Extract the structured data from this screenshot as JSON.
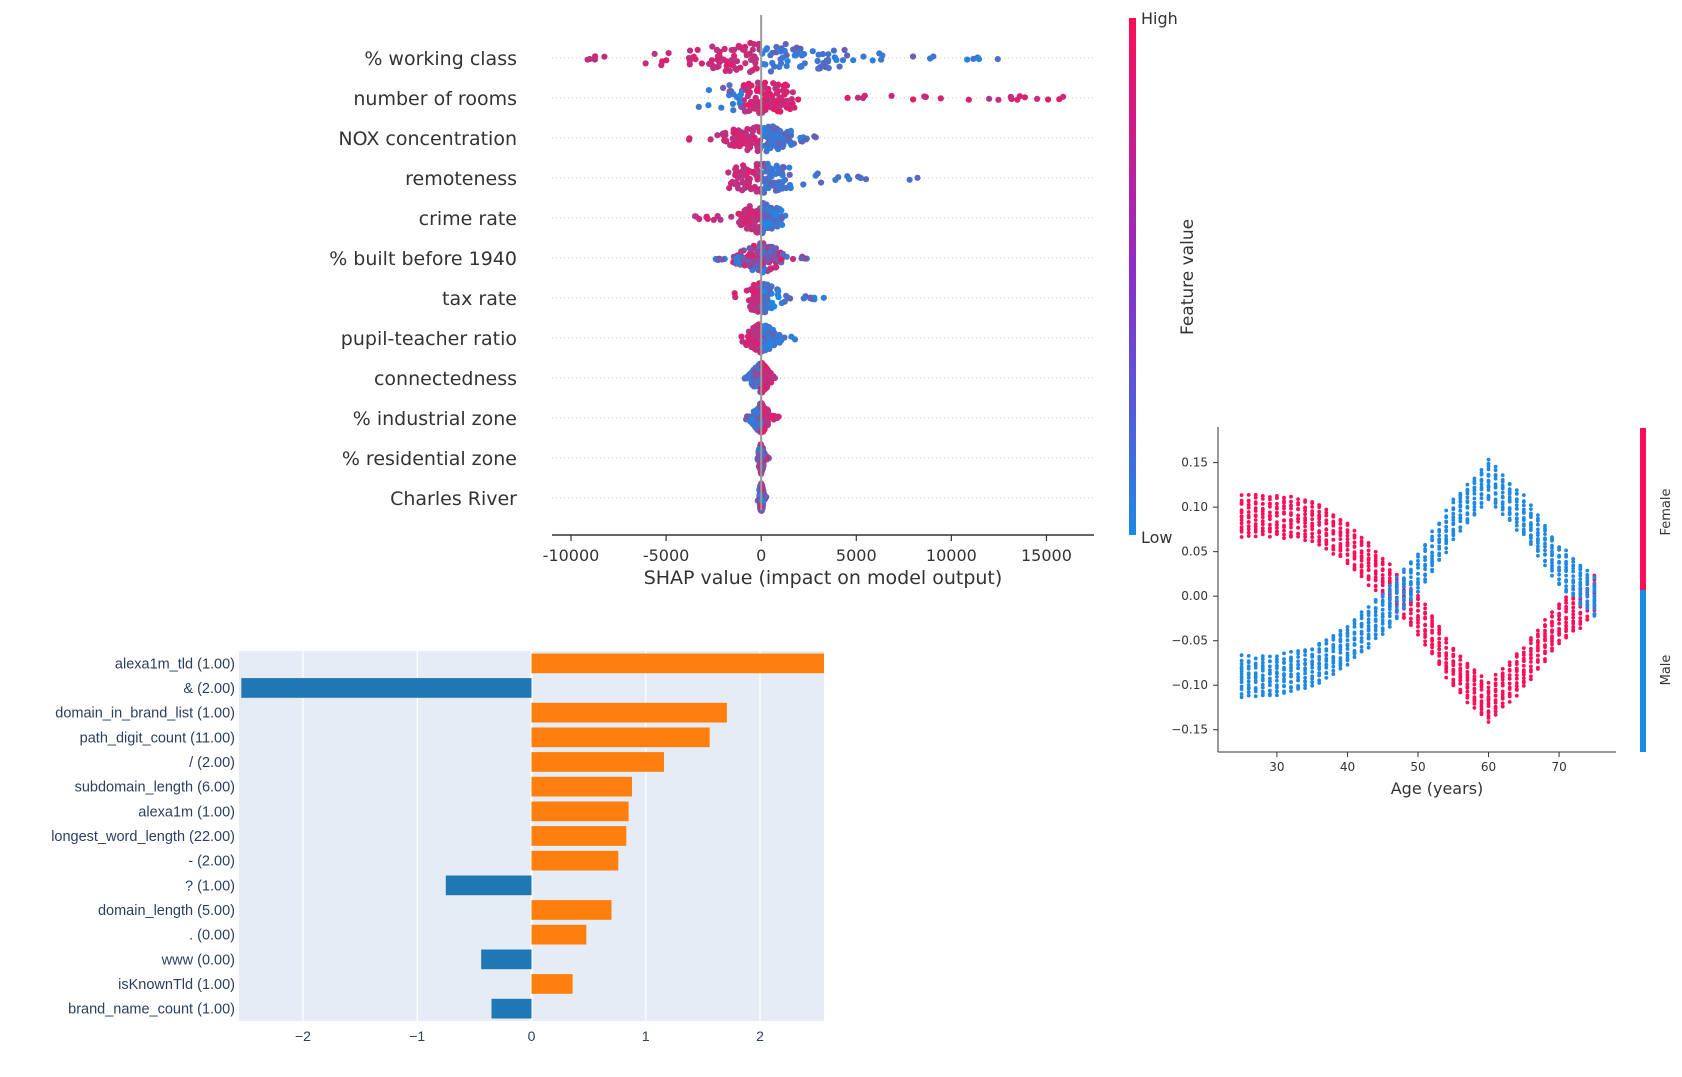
{
  "summary": {
    "type": "scatter",
    "subtype": "beeswarm",
    "xlabel": "SHAP value (impact on model output)",
    "xlim": [
      -11000,
      17500
    ],
    "xticks": [
      -10000,
      -5000,
      0,
      5000,
      10000,
      15000
    ],
    "xtick_labels": [
      "-10000",
      "-5000",
      "0",
      "5000",
      "10000",
      "15000"
    ],
    "features": [
      {
        "name": "% working class",
        "min": -9600,
        "max": 13500,
        "low_hi_split": 0,
        "core": 5000,
        "high_side": "negative"
      },
      {
        "name": "number of rooms",
        "min": -3500,
        "max": 16000,
        "low_hi_split": -1000,
        "core": 2200,
        "high_side": "positive"
      },
      {
        "name": "NOX concentration",
        "min": -4000,
        "max": 3000,
        "low_hi_split": 0,
        "core": 2200,
        "high_side": "negative"
      },
      {
        "name": "remoteness",
        "min": -2000,
        "max": 8500,
        "low_hi_split": 0,
        "core": 1800,
        "high_side": "negative"
      },
      {
        "name": "crime rate",
        "min": -3600,
        "max": 1800,
        "low_hi_split": 0,
        "core": 1400,
        "high_side": "negative"
      },
      {
        "name": "% built before 1940",
        "min": -2400,
        "max": 2400,
        "low_hi_split": 0,
        "core": 1400,
        "high_side": "mixed"
      },
      {
        "name": "tax rate",
        "min": -1400,
        "max": 3300,
        "low_hi_split": 0,
        "core": 700,
        "high_side": "negative"
      },
      {
        "name": "pupil-teacher ratio",
        "min": -1200,
        "max": 2000,
        "low_hi_split": 0,
        "core": 800,
        "high_side": "negative"
      },
      {
        "name": "connectedness",
        "min": -1000,
        "max": 1000,
        "low_hi_split": 0,
        "core": 600,
        "high_side": "positive"
      },
      {
        "name": "% industrial zone",
        "min": -800,
        "max": 1000,
        "low_hi_split": 0,
        "core": 500,
        "high_side": "positive"
      },
      {
        "name": "% residential zone",
        "min": -200,
        "max": 400,
        "low_hi_split": 0,
        "core": 150,
        "high_side": "mixed"
      },
      {
        "name": "Charles River",
        "min": -200,
        "max": 300,
        "low_hi_split": 0,
        "core": 120,
        "high_side": "mixed"
      }
    ],
    "colorbar": {
      "high": "High",
      "low": "Low",
      "label": "Feature value"
    },
    "colors": {
      "high": "#ff0d57",
      "low": "#1e88e5"
    }
  },
  "bars": {
    "type": "bar",
    "orientation": "horizontal",
    "categories": [
      "alexa1m_tld (1.00)",
      "& (2.00)",
      "domain_in_brand_list (1.00)",
      "path_digit_count (11.00)",
      "/ (2.00)",
      "subdomain_length (6.00)",
      "alexa1m (1.00)",
      "longest_word_length (22.00)",
      "- (2.00)",
      "? (1.00)",
      "domain_length (5.00)",
      ". (0.00)",
      "www (0.00)",
      "isKnownTld (1.00)",
      "brand_name_count (1.00)"
    ],
    "values": [
      2.56,
      -2.54,
      1.71,
      1.56,
      1.16,
      0.88,
      0.85,
      0.83,
      0.76,
      -0.75,
      0.7,
      0.48,
      -0.44,
      0.36,
      -0.35
    ],
    "xlim": [
      -2.56,
      2.56
    ],
    "xticks": [
      -2,
      -1,
      0,
      1,
      2
    ],
    "xtick_labels": [
      "−2",
      "−1",
      "0",
      "1",
      "2"
    ],
    "colors": {
      "positive": "#ff7f0e",
      "negative": "#1f77b4",
      "background": "#e5ecf6"
    }
  },
  "dependence": {
    "type": "scatter",
    "xlabel": "Age (years)",
    "xlim": [
      22.5,
      77.5
    ],
    "ylim": [
      -0.175,
      0.19
    ],
    "xticks": [
      30,
      40,
      50,
      60,
      70
    ],
    "xtick_labels": [
      "30",
      "40",
      "50",
      "60",
      "70"
    ],
    "yticks": [
      0.15,
      0.1,
      0.05,
      0.0,
      -0.05,
      -0.1,
      -0.15
    ],
    "ytick_labels": [
      "0.15",
      "0.10",
      "0.05",
      "0.00",
      "−0.05",
      "−0.10",
      "−0.15"
    ],
    "series": [
      {
        "name": "Female",
        "color": "#ff0d57",
        "ages": [
          25,
          30,
          35,
          40,
          45,
          50,
          55,
          60,
          65,
          70,
          75
        ],
        "centers": [
          0.09,
          0.09,
          0.085,
          0.06,
          0.02,
          -0.02,
          -0.08,
          -0.12,
          -0.08,
          -0.03,
          0.0
        ]
      },
      {
        "name": "Male",
        "color": "#1e88e5",
        "ages": [
          25,
          30,
          35,
          40,
          45,
          50,
          55,
          60,
          65,
          70,
          75
        ],
        "centers": [
          -0.09,
          -0.09,
          -0.08,
          -0.055,
          -0.02,
          0.025,
          0.085,
          0.13,
          0.09,
          0.035,
          0.0
        ]
      }
    ],
    "legend": {
      "top": "Female",
      "bottom": "Male"
    }
  }
}
